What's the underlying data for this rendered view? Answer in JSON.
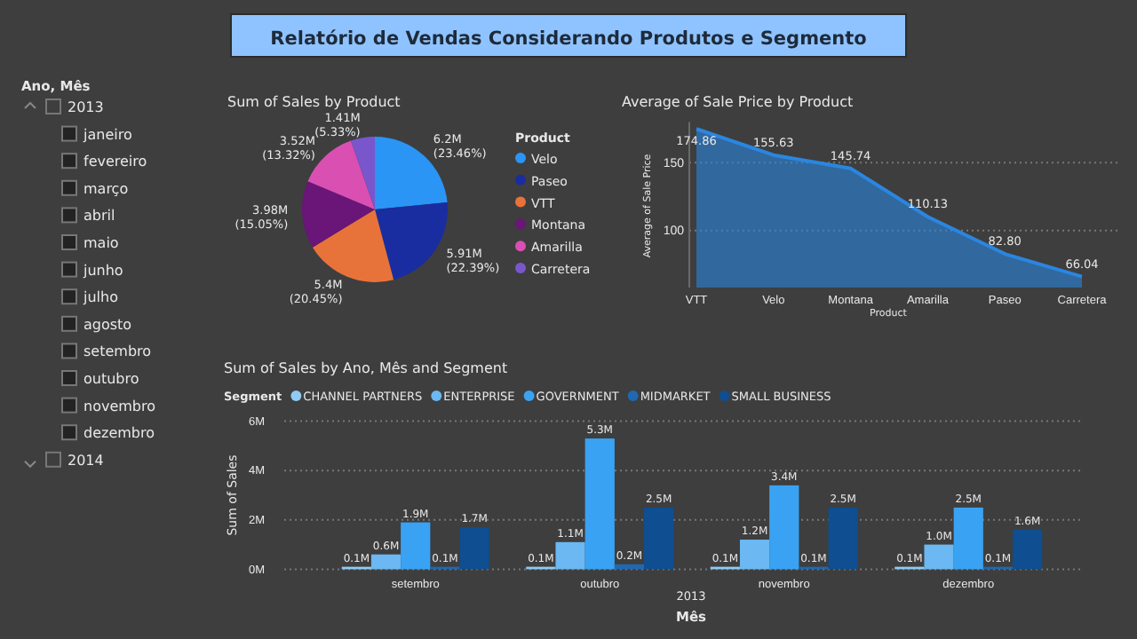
{
  "chart_data": [
    {
      "type": "other",
      "title": "Relatório de Vendas Considerando Produtos e Segmento",
      "subtitle": "Ano, Mês",
      "annotations": [
        "2013",
        "janeiro",
        "fevereiro",
        "março",
        "abril",
        "maio",
        "junho",
        "julho",
        "agosto",
        "setembro",
        "outubro",
        "novembro",
        "dezembro",
        "2014"
      ]
    },
    {
      "type": "pie",
      "title": "Sum of Sales by Product",
      "legend": "right",
      "legend_title": "Product",
      "categories": [
        "Velo",
        "Paseo",
        "VTT",
        "Montana",
        "Amarilla",
        "Carretera"
      ],
      "values": [
        23.46,
        22.39,
        20.45,
        15.05,
        13.32,
        5.33
      ],
      "colors": [
        "#2a95f5",
        "#1a2da0",
        "#e8733a",
        "#6a1578",
        "#d94fb2",
        "#7a56cc"
      ],
      "value_labels": [
        "6.2M (23.46%)",
        "5.91M (22.39%)",
        "5.4M (20.45%)",
        "3.98M (15.05%)",
        "3.52M (13.32%)",
        "1.41M (5.33%)"
      ]
    },
    {
      "type": "area",
      "title": "Average of Sale Price by Product",
      "xlabel": "Product",
      "ylabel": "Average of Sale Price",
      "categories": [
        "VTT",
        "Velo",
        "Montana",
        "Amarilla",
        "Paseo",
        "Carretera"
      ],
      "series": [
        {
          "color": "#2a86e0",
          "values": [
            174.86,
            155.63,
            145.74,
            110.13,
            82.8,
            66.04
          ],
          "value_labels": [
            "174.86",
            "155.63",
            "145.74",
            "110.13",
            "82.80",
            "66.04"
          ]
        }
      ],
      "ylim": [
        58,
        180
      ],
      "yticks": [
        100,
        150
      ],
      "grid": "y"
    },
    {
      "type": "bar",
      "title": "Sum of Sales by Ano, Mês and Segment",
      "xlabel": "Mês",
      "ylabel": "Sum of Sales",
      "legend": "top left",
      "legend_title": "Segment",
      "categories": [
        "setembro",
        "outubro",
        "novembro",
        "dezembro"
      ],
      "series": [
        {
          "name": "CHANNEL PARTNERS",
          "color": "#8fcbf5",
          "values": [
            0.1,
            0.1,
            0.1,
            0.1
          ],
          "value_labels": [
            "0.1M",
            "0.1M",
            "0.1M",
            "0.1M"
          ]
        },
        {
          "name": "ENTERPRISE",
          "color": "#6bb8f2",
          "values": [
            0.6,
            1.1,
            1.2,
            1.0
          ],
          "value_labels": [
            "0.6M",
            "1.1M",
            "1.2M",
            "1.0M"
          ]
        },
        {
          "name": "GOVERNMENT",
          "color": "#3aa2f2",
          "values": [
            1.9,
            5.3,
            3.4,
            2.5
          ],
          "value_labels": [
            "1.9M",
            "5.3M",
            "3.4M",
            "2.5M"
          ]
        },
        {
          "name": "MIDMARKET",
          "color": "#1f68b4",
          "values": [
            0.1,
            0.2,
            0.1,
            0.1
          ],
          "value_labels": [
            "0.1M",
            "0.2M",
            "0.1M",
            "0.1M"
          ]
        },
        {
          "name": "SMALL BUSINESS",
          "color": "#0f4e90",
          "values": [
            1.7,
            2.5,
            2.5,
            1.6
          ],
          "value_labels": [
            "1.7M",
            "2.5M",
            "2.5M",
            "1.6M"
          ]
        }
      ],
      "ylim": [
        0,
        6
      ],
      "yticks": [
        {
          "value": 0,
          "label": "0M"
        },
        {
          "value": 2,
          "label": "2M"
        },
        {
          "value": 4,
          "label": "4M"
        },
        {
          "value": 6,
          "label": "6M"
        }
      ],
      "grid": "y",
      "annotations": [
        "2013"
      ]
    }
  ]
}
